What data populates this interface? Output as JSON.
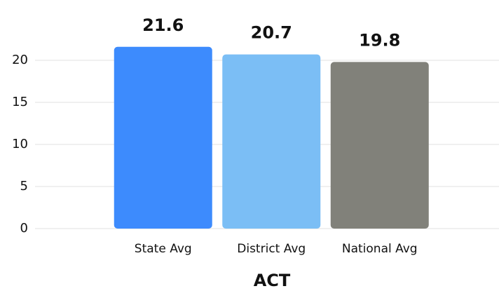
{
  "chart_data": {
    "type": "bar",
    "xlabel": "ACT",
    "categories": [
      "State Avg",
      "District Avg",
      "National Avg"
    ],
    "values": [
      21.6,
      20.7,
      19.8
    ],
    "colors": [
      "#3d8bfd",
      "#7bbef5",
      "#81817a"
    ],
    "ylim": [
      0,
      22
    ],
    "yticks": [
      0,
      5,
      10,
      15,
      20
    ],
    "grid": true
  }
}
